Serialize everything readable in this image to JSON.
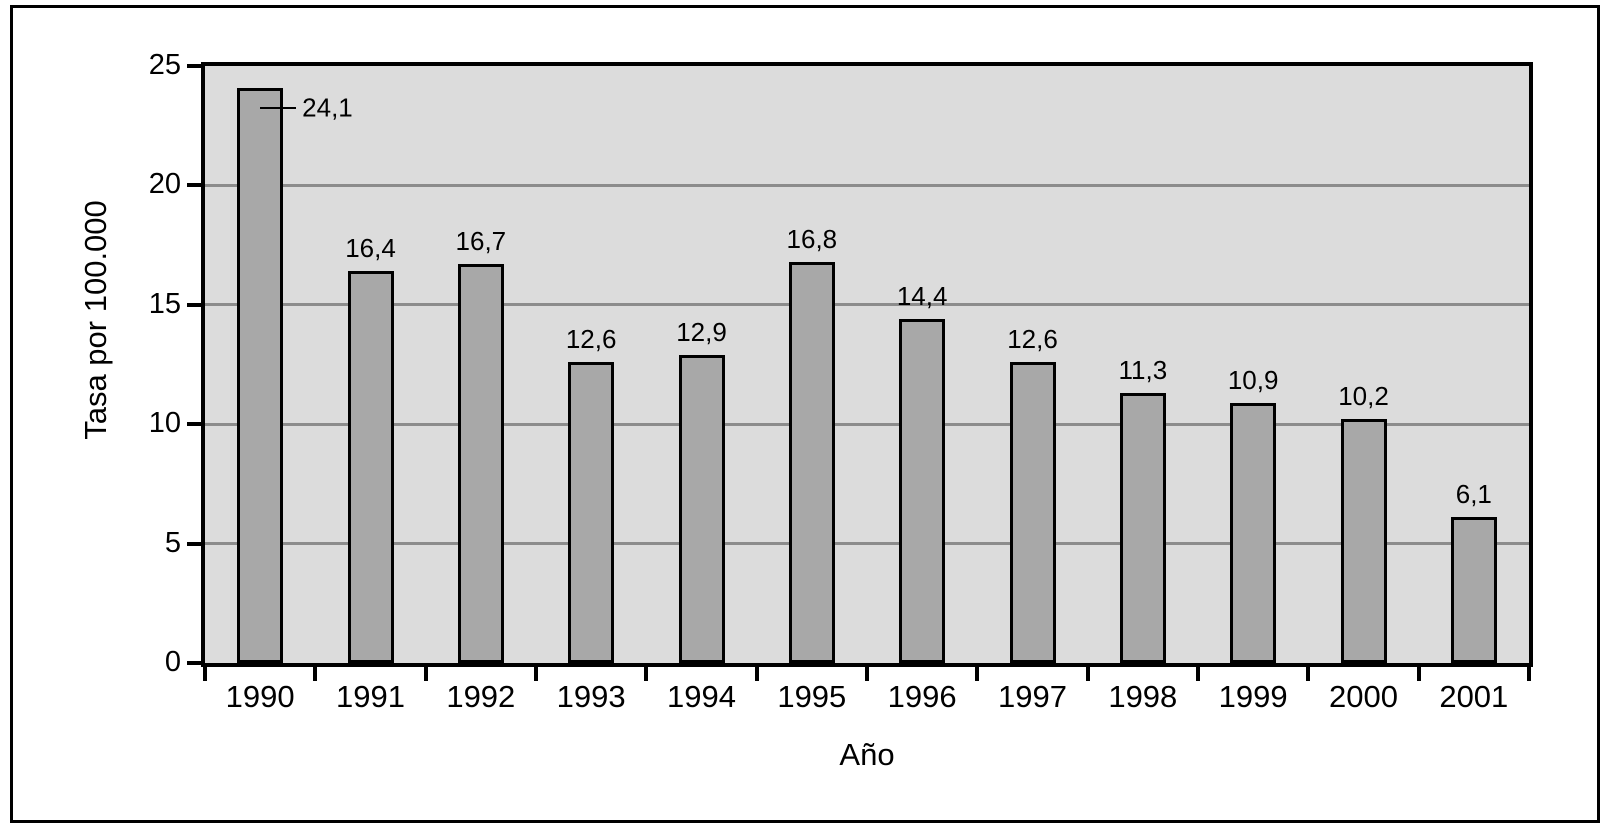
{
  "chart_data": {
    "type": "bar",
    "title": "",
    "xlabel": "Año",
    "ylabel": "Tasa por 100.000",
    "categories": [
      "1990",
      "1991",
      "1992",
      "1993",
      "1994",
      "1995",
      "1996",
      "1997",
      "1998",
      "1999",
      "2000",
      "2001"
    ],
    "values": [
      24.1,
      16.4,
      16.7,
      12.6,
      12.9,
      16.8,
      14.4,
      12.6,
      11.3,
      10.9,
      10.2,
      6.1
    ],
    "value_labels": [
      "24,1",
      "16,4",
      "16,7",
      "12,6",
      "12,9",
      "16,8",
      "14,4",
      "12,6",
      "11,3",
      "10,9",
      "10,2",
      "6,1"
    ],
    "ylim": [
      0,
      25
    ],
    "yticks": [
      0,
      5,
      10,
      15,
      20,
      25
    ],
    "ytick_labels": [
      "0",
      "5",
      "10",
      "15",
      "20",
      "25"
    ],
    "grid": true,
    "gridline_values": [
      5,
      10,
      15,
      20
    ],
    "legend": null,
    "callout_index": 0,
    "colors": {
      "bar_fill": "#a8a8a8",
      "bar_border": "#000000",
      "plot_background": "#dcdcdc",
      "gridline": "#8c8c8c",
      "axis": "#000000",
      "figure_background": "#ffffff",
      "text": "#000000"
    }
  }
}
